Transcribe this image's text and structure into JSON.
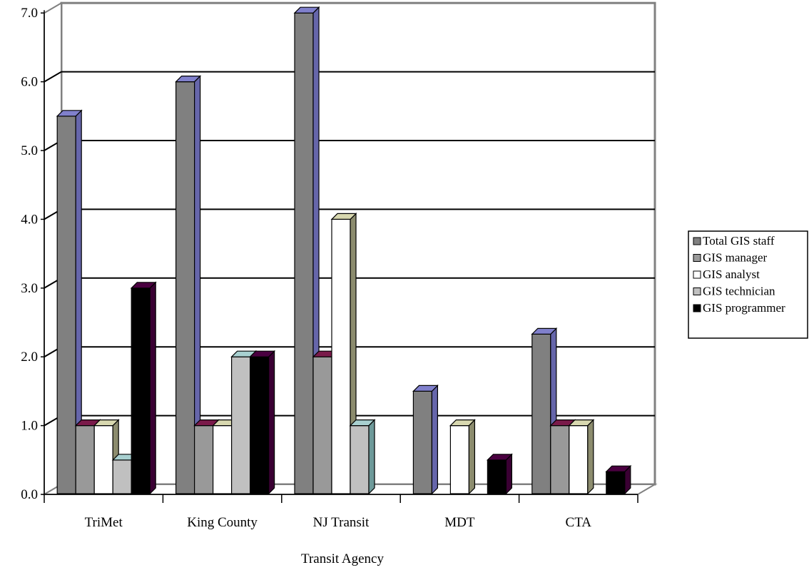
{
  "chart_data": {
    "type": "bar",
    "title": "",
    "xlabel": "Transit Agency",
    "ylabel": "",
    "ylim": [
      0,
      7
    ],
    "yticks": [
      "0.0",
      "1.0",
      "2.0",
      "3.0",
      "4.0",
      "5.0",
      "6.0",
      "7.0"
    ],
    "grid": true,
    "legend_position": "right",
    "categories": [
      "TriMet",
      "King County",
      "NJ Transit",
      "MDT",
      "CTA"
    ],
    "series": [
      {
        "name": "Total GIS staff",
        "values": [
          5.5,
          6.0,
          7.0,
          1.5,
          2.33
        ],
        "color": "#808080",
        "side_color": "#6666aa",
        "top_color": "#8080cc"
      },
      {
        "name": "GIS manager",
        "values": [
          1.0,
          1.0,
          2.0,
          0,
          1.0
        ],
        "color": "#999999",
        "side_color": "#660033",
        "top_color": "#7a1a4a"
      },
      {
        "name": "GIS analyst",
        "values": [
          1.0,
          1.0,
          4.0,
          1.0,
          1.0
        ],
        "color": "#ffffff",
        "side_color": "#8c8c6e",
        "top_color": "#d8d8b0"
      },
      {
        "name": "GIS technician",
        "values": [
          0.5,
          2.0,
          1.0,
          0,
          0
        ],
        "color": "#c0c0c0",
        "side_color": "#6e9a9a",
        "top_color": "#a8d0d0"
      },
      {
        "name": "GIS programmer",
        "values": [
          3.0,
          2.0,
          0,
          0.5,
          0.33
        ],
        "color": "#000000",
        "side_color": "#3a0033",
        "top_color": "#4a0040"
      }
    ]
  }
}
